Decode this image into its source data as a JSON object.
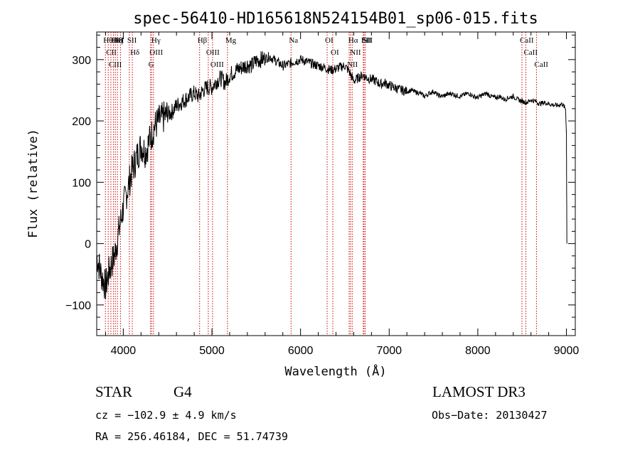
{
  "chart_data": {
    "type": "line",
    "title": "spec-56410-HD165618N524154B01_sp06-015.fits",
    "xlabel": "Wavelength (Å)",
    "ylabel": "Flux (relative)",
    "xlim": [
      3700,
      9100
    ],
    "ylim": [
      -150,
      345
    ],
    "xticks": [
      4000,
      5000,
      6000,
      7000,
      8000,
      9000
    ],
    "yticks": [
      -100,
      0,
      100,
      200,
      300
    ],
    "xtick_labels": [
      "4000",
      "5000",
      "6000",
      "7000",
      "8000",
      "9000"
    ],
    "ytick_labels": [
      "−100",
      "0",
      "100",
      "200",
      "300"
    ],
    "series": [
      {
        "name": "flux",
        "x": [
          3700,
          3750,
          3800,
          3850,
          3900,
          3950,
          4000,
          4050,
          4100,
          4150,
          4200,
          4250,
          4300,
          4350,
          4400,
          4450,
          4500,
          4550,
          4600,
          4650,
          4700,
          4750,
          4800,
          4850,
          4900,
          4950,
          5000,
          5050,
          5100,
          5150,
          5200,
          5250,
          5300,
          5350,
          5400,
          5450,
          5500,
          5550,
          5600,
          5650,
          5700,
          5750,
          5800,
          5850,
          5900,
          5950,
          6000,
          6050,
          6100,
          6150,
          6200,
          6250,
          6300,
          6350,
          6400,
          6450,
          6500,
          6550,
          6600,
          6650,
          6700,
          6750,
          6800,
          6850,
          6900,
          6950,
          7000,
          7050,
          7100,
          7150,
          7200,
          7250,
          7300,
          7350,
          7400,
          7450,
          7500,
          7550,
          7600,
          7650,
          7700,
          7750,
          7800,
          7850,
          7900,
          7950,
          8000,
          8050,
          8100,
          8150,
          8200,
          8250,
          8300,
          8350,
          8400,
          8450,
          8500,
          8550,
          8600,
          8650,
          8700,
          8750,
          8800,
          8850,
          8900,
          8950,
          8990,
          9000,
          9005
        ],
        "y": [
          -20,
          -50,
          -70,
          -40,
          -20,
          20,
          60,
          90,
          120,
          140,
          160,
          150,
          170,
          190,
          200,
          205,
          210,
          215,
          225,
          230,
          235,
          240,
          245,
          240,
          250,
          255,
          255,
          265,
          270,
          262,
          275,
          280,
          285,
          288,
          292,
          290,
          298,
          300,
          302,
          305,
          300,
          295,
          290,
          292,
          295,
          298,
          300,
          298,
          295,
          292,
          290,
          288,
          285,
          283,
          285,
          288,
          290,
          280,
          265,
          270,
          275,
          270,
          268,
          265,
          260,
          262,
          258,
          255,
          252,
          250,
          248,
          250,
          247,
          245,
          240,
          245,
          248,
          242,
          240,
          243,
          245,
          242,
          240,
          243,
          245,
          240,
          238,
          242,
          245,
          240,
          238,
          240,
          235,
          238,
          240,
          235,
          232,
          230,
          234,
          232,
          228,
          230,
          228,
          226,
          225,
          228,
          220,
          180,
          0
        ]
      }
    ],
    "spectral_lines": [
      {
        "label": "Hθ",
        "wavelength": 3798
      },
      {
        "label": "CII",
        "wavelength": 3830
      },
      {
        "label": "CIII",
        "wavelength": 3860
      },
      {
        "label": "K",
        "wavelength": 3934
      },
      {
        "label": "HeI",
        "wavelength": 3889
      },
      {
        "label": "Hη",
        "wavelength": 3910
      },
      {
        "label": "H",
        "wavelength": 3968
      },
      {
        "label": "SII",
        "wavelength": 4068
      },
      {
        "label": "Hδ",
        "wavelength": 4102
      },
      {
        "label": "OIII",
        "wavelength": 4320
      },
      {
        "label": "Hγ",
        "wavelength": 4341
      },
      {
        "label": "G",
        "wavelength": 4307
      },
      {
        "label": "Hβ",
        "wavelength": 4861
      },
      {
        "label": "OIII",
        "wavelength": 4959
      },
      {
        "label": "OIII",
        "wavelength": 5007
      },
      {
        "label": "Mg",
        "wavelength": 5175
      },
      {
        "label": "Na",
        "wavelength": 5893
      },
      {
        "label": "OI",
        "wavelength": 6300
      },
      {
        "label": "OI",
        "wavelength": 6364
      },
      {
        "label": "Hα",
        "wavelength": 6563
      },
      {
        "label": "NII",
        "wavelength": 6548
      },
      {
        "label": "NII",
        "wavelength": 6583
      },
      {
        "label": "SII",
        "wavelength": 6716
      },
      {
        "label": "SII",
        "wavelength": 6731
      },
      {
        "label": "Li",
        "wavelength": 6708
      },
      {
        "label": "CaII",
        "wavelength": 8498
      },
      {
        "label": "CaII",
        "wavelength": 8542
      },
      {
        "label": "CaII",
        "wavelength": 8662
      }
    ]
  },
  "info": {
    "class_label": "STAR",
    "subclass": "G4",
    "survey": "LAMOST DR3",
    "cz": "cz = −102.9 ± 4.9 km/s",
    "obs_date": "Obs−Date: 20130427",
    "radec": "RA = 256.46184, DEC =  51.74739"
  },
  "colors": {
    "line_marker": "#cc0000",
    "spectrum": "#000000"
  }
}
